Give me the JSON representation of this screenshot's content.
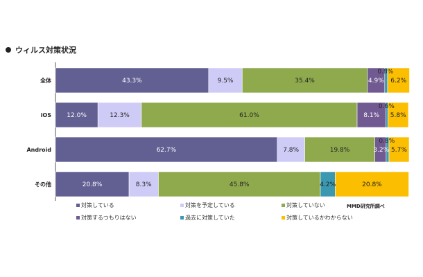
{
  "title": "ウィルス対策状況",
  "source": "MMD研究所調べ",
  "chart_data": {
    "type": "bar",
    "orientation": "horizontal",
    "stacked": true,
    "categories": [
      "全体",
      "iOS",
      "Android",
      "その他"
    ],
    "series": [
      {
        "name": "対策している",
        "color": "#625f93",
        "values": [
          43.3,
          12.0,
          62.7,
          20.8
        ]
      },
      {
        "name": "対策を予定している",
        "color": "#cfcbf7",
        "values": [
          9.5,
          12.3,
          7.8,
          8.3
        ]
      },
      {
        "name": "対策していない",
        "color": "#8fa94d",
        "values": [
          35.4,
          61.0,
          19.8,
          45.8
        ]
      },
      {
        "name": "対策するつもりはない",
        "color": "#705a91",
        "values": [
          4.9,
          8.1,
          3.2,
          0
        ]
      },
      {
        "name": "過去に対策していた",
        "color": "#3a98b0",
        "values": [
          0.8,
          0.6,
          0.8,
          4.2
        ]
      },
      {
        "name": "対策しているかわからない",
        "color": "#fbbe00",
        "values": [
          6.2,
          5.8,
          5.7,
          20.8
        ]
      }
    ],
    "value_labels": [
      [
        "43.3%",
        "9.5%",
        "35.4%",
        "4.9%",
        "0.8%",
        "6.2%"
      ],
      [
        "12.0%",
        "12.3%",
        "61.0%",
        "8.1%",
        "0.6%",
        "5.8%"
      ],
      [
        "62.7%",
        "7.8%",
        "19.8%",
        "3.2%",
        "0.8%",
        "5.7%"
      ],
      [
        "20.8%",
        "8.3%",
        "45.8%",
        "",
        "4.2%",
        "20.8%"
      ]
    ],
    "xlim": [
      0,
      100
    ],
    "grid": false,
    "legend_position": "bottom"
  }
}
